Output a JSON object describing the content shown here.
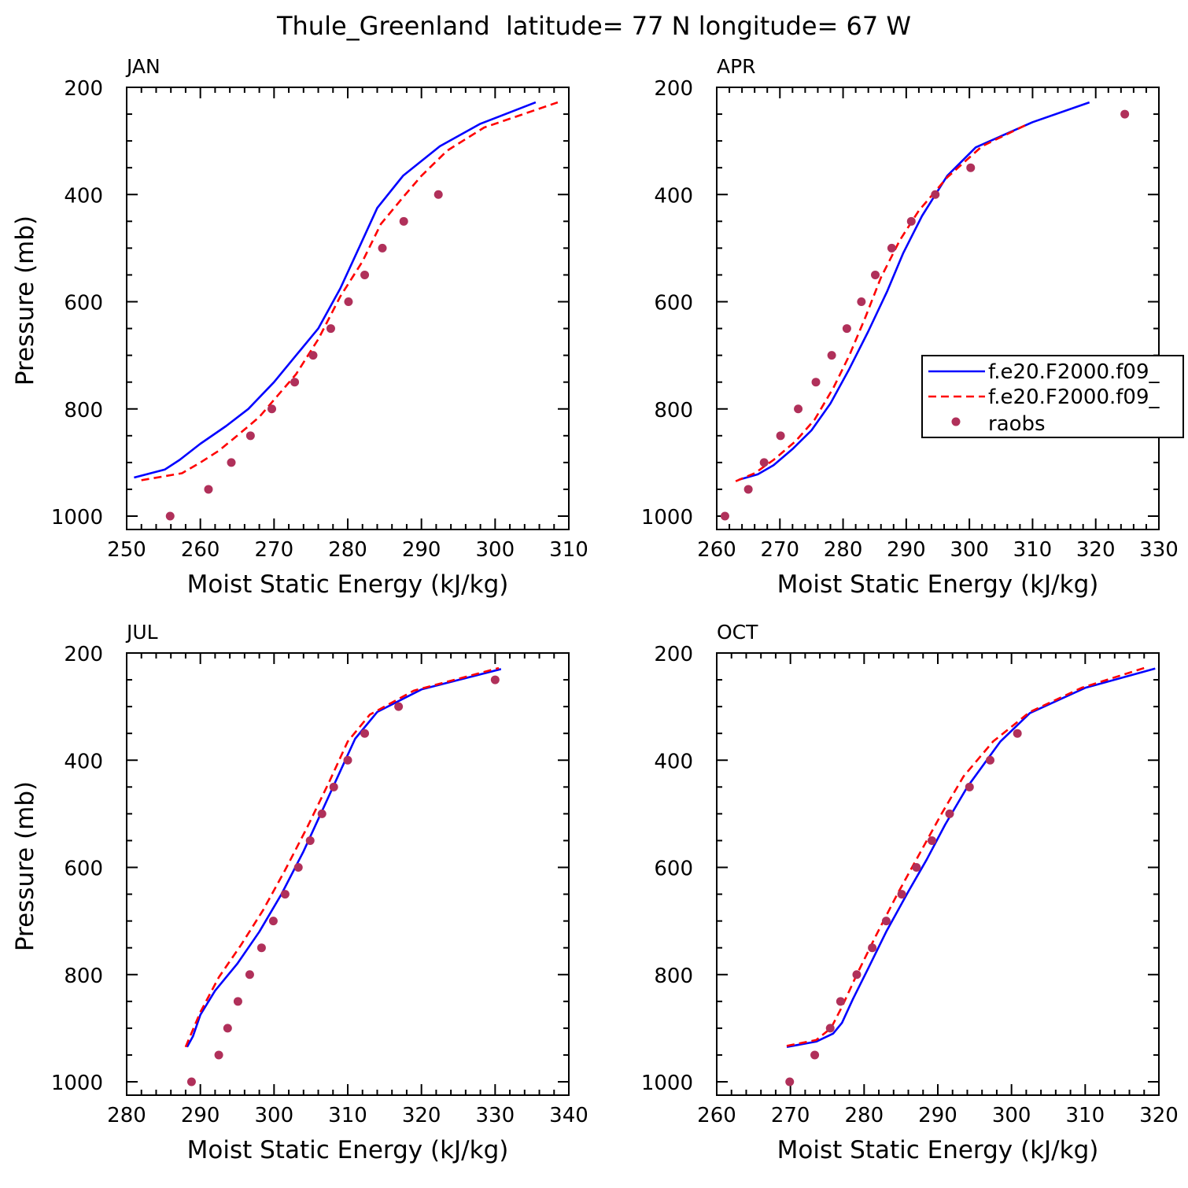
{
  "title": "Thule_Greenland  latitude= 77 N longitude= 67 W",
  "colors": {
    "series1": "#0000ff",
    "series2": "#ff0000",
    "raobs": "#b0305a",
    "axis": "#000000"
  },
  "legend": {
    "location": "APR panel, right",
    "entries": [
      {
        "label": "f.e20.F2000.f09_",
        "style": "solid",
        "color": "#0000ff"
      },
      {
        "label": "f.e20.F2000.f09_",
        "style": "dashed",
        "color": "#ff0000"
      },
      {
        "label": "raobs",
        "style": "marker",
        "color": "#b0305a"
      }
    ]
  },
  "chart_data": [
    {
      "type": "line",
      "panel": "JAN",
      "xlabel": "Moist Static Energy (kJ/kg)",
      "ylabel": "Pressure (mb)",
      "xlim": [
        250,
        310
      ],
      "ylim": [
        200,
        1000
      ],
      "xticks": [
        250,
        260,
        270,
        280,
        290,
        300,
        310
      ],
      "yticks": [
        200,
        400,
        600,
        800,
        1000
      ],
      "series": [
        {
          "name": "f.e20.F2000.f09_ (solid)",
          "style": "solid",
          "color": "#0000ff",
          "x": [
            251,
            255.2,
            257.2,
            260,
            263.5,
            266.5,
            270,
            273,
            276,
            279,
            281.5,
            284,
            287.5,
            292.5,
            298,
            305.5
          ],
          "y": [
            928,
            913,
            895,
            865,
            832,
            800,
            750,
            700,
            650,
            575,
            500,
            425,
            365,
            310,
            268,
            228
          ]
        },
        {
          "name": "f.e20.F2000.f09_ (dashed)",
          "style": "dashed",
          "color": "#ff0000",
          "x": [
            252,
            257.5,
            260,
            262.5,
            265,
            268,
            270.5,
            273,
            276,
            279,
            282,
            284.5,
            287.5,
            290,
            293.5,
            298.5,
            308.5
          ],
          "y": [
            933,
            920,
            900,
            878,
            850,
            815,
            775,
            735,
            670,
            590,
            525,
            455,
            405,
            365,
            318,
            275,
            228
          ]
        },
        {
          "name": "raobs",
          "style": "marker",
          "color": "#b0305a",
          "x": [
            255.9,
            261.1,
            264.2,
            266.8,
            269.7,
            272.8,
            275.3,
            277.7,
            280.1,
            282.3,
            284.7,
            287.6,
            292.3
          ],
          "y": [
            1000,
            950,
            900,
            850,
            800,
            750,
            700,
            650,
            600,
            550,
            500,
            450,
            400
          ]
        }
      ]
    },
    {
      "type": "line",
      "panel": "APR",
      "xlabel": "Moist Static Energy (kJ/kg)",
      "ylabel": "Pressure (mb)",
      "xlim": [
        260,
        330
      ],
      "ylim": [
        200,
        1000
      ],
      "xticks": [
        260,
        270,
        280,
        290,
        300,
        310,
        320,
        330
      ],
      "yticks": [
        200,
        400,
        600,
        800,
        1000
      ],
      "series": [
        {
          "name": "f.e20.F2000.f09_ (solid)",
          "style": "solid",
          "color": "#0000ff",
          "x": [
            263.5,
            266.5,
            269,
            272,
            275,
            278,
            281,
            284,
            287,
            289.5,
            292.5,
            296.5,
            301,
            310,
            319
          ],
          "y": [
            932,
            922,
            905,
            875,
            840,
            790,
            725,
            655,
            580,
            510,
            440,
            365,
            312,
            265,
            228
          ]
        },
        {
          "name": "f.e20.F2000.f09_ (dashed)",
          "style": "dashed",
          "color": "#ff0000",
          "x": [
            263,
            266,
            269,
            272.5,
            275.5,
            278.5,
            281,
            283.5,
            286,
            289,
            292,
            296.5,
            302,
            309
          ],
          "y": [
            935,
            920,
            895,
            860,
            820,
            760,
            700,
            630,
            555,
            485,
            430,
            368,
            310,
            270
          ]
        },
        {
          "name": "raobs",
          "style": "marker",
          "color": "#b0305a",
          "x": [
            261.3,
            265,
            267.5,
            270.1,
            272.9,
            275.7,
            278.2,
            280.6,
            282.9,
            285.1,
            287.7,
            290.8,
            294.6,
            300.2,
            324.6
          ],
          "y": [
            1000,
            950,
            900,
            850,
            800,
            750,
            700,
            650,
            600,
            550,
            500,
            450,
            400,
            350,
            250
          ]
        }
      ]
    },
    {
      "type": "line",
      "panel": "JUL",
      "xlabel": "Moist Static Energy (kJ/kg)",
      "ylabel": "Pressure (mb)",
      "xlim": [
        280,
        340
      ],
      "ylim": [
        200,
        1000
      ],
      "xticks": [
        280,
        290,
        300,
        310,
        320,
        330,
        340
      ],
      "yticks": [
        200,
        400,
        600,
        800,
        1000
      ],
      "series": [
        {
          "name": "f.e20.F2000.f09_ (solid)",
          "style": "solid",
          "color": "#0000ff",
          "x": [
            288.2,
            289,
            290,
            292,
            295,
            298,
            301,
            304,
            307,
            309,
            311,
            314,
            320,
            330.8
          ],
          "y": [
            935,
            915,
            875,
            830,
            780,
            720,
            650,
            570,
            480,
            420,
            360,
            310,
            268,
            230
          ]
        },
        {
          "name": "f.e20.F2000.f09_ (dashed)",
          "style": "dashed",
          "color": "#ff0000",
          "x": [
            288,
            290,
            292.5,
            295.5,
            298.5,
            301.5,
            304.5,
            307.5,
            310,
            313,
            319,
            330.5
          ],
          "y": [
            935,
            870,
            805,
            745,
            680,
            605,
            525,
            440,
            365,
            315,
            270,
            228
          ]
        },
        {
          "name": "raobs",
          "style": "marker",
          "color": "#b0305a",
          "x": [
            288.8,
            292.5,
            293.7,
            295.1,
            296.7,
            298.3,
            299.9,
            301.5,
            303.3,
            304.9,
            306.5,
            308.1,
            310,
            312.3,
            316.9,
            330
          ],
          "y": [
            1000,
            950,
            900,
            850,
            800,
            750,
            700,
            650,
            600,
            550,
            500,
            450,
            400,
            350,
            300,
            250
          ]
        }
      ]
    },
    {
      "type": "line",
      "panel": "OCT",
      "xlabel": "Moist Static Energy (kJ/kg)",
      "ylabel": "Pressure (mb)",
      "xlim": [
        260,
        320
      ],
      "ylim": [
        200,
        1000
      ],
      "xticks": [
        260,
        270,
        280,
        290,
        300,
        310,
        320
      ],
      "yticks": [
        200,
        400,
        600,
        800,
        1000
      ],
      "series": [
        {
          "name": "f.e20.F2000.f09_ (solid)",
          "style": "solid",
          "color": "#0000ff",
          "x": [
            269.5,
            273.5,
            275.8,
            277,
            278.5,
            280.5,
            283,
            286,
            288.5,
            291,
            294,
            298.5,
            302.5,
            310,
            319.5
          ],
          "y": [
            935,
            925,
            910,
            890,
            845,
            790,
            720,
            645,
            585,
            520,
            450,
            365,
            312,
            265,
            229
          ]
        },
        {
          "name": "f.e20.F2000.f09_ (dashed)",
          "style": "dashed",
          "color": "#ff0000",
          "x": [
            269.5,
            273.5,
            275.5,
            277,
            279,
            281.5,
            284.5,
            287.5,
            290.5,
            293.5,
            297.5,
            302.5,
            309.5,
            318
          ],
          "y": [
            933,
            922,
            900,
            860,
            800,
            730,
            650,
            575,
            500,
            430,
            365,
            310,
            265,
            228
          ]
        },
        {
          "name": "raobs",
          "style": "marker",
          "color": "#b0305a",
          "x": [
            269.9,
            273.3,
            275.4,
            276.8,
            279,
            281.1,
            283,
            285.1,
            287.1,
            289.2,
            291.6,
            294.3,
            297.1,
            300.8
          ],
          "y": [
            1000,
            950,
            900,
            850,
            800,
            750,
            700,
            650,
            600,
            550,
            500,
            450,
            400,
            350
          ]
        }
      ]
    }
  ]
}
